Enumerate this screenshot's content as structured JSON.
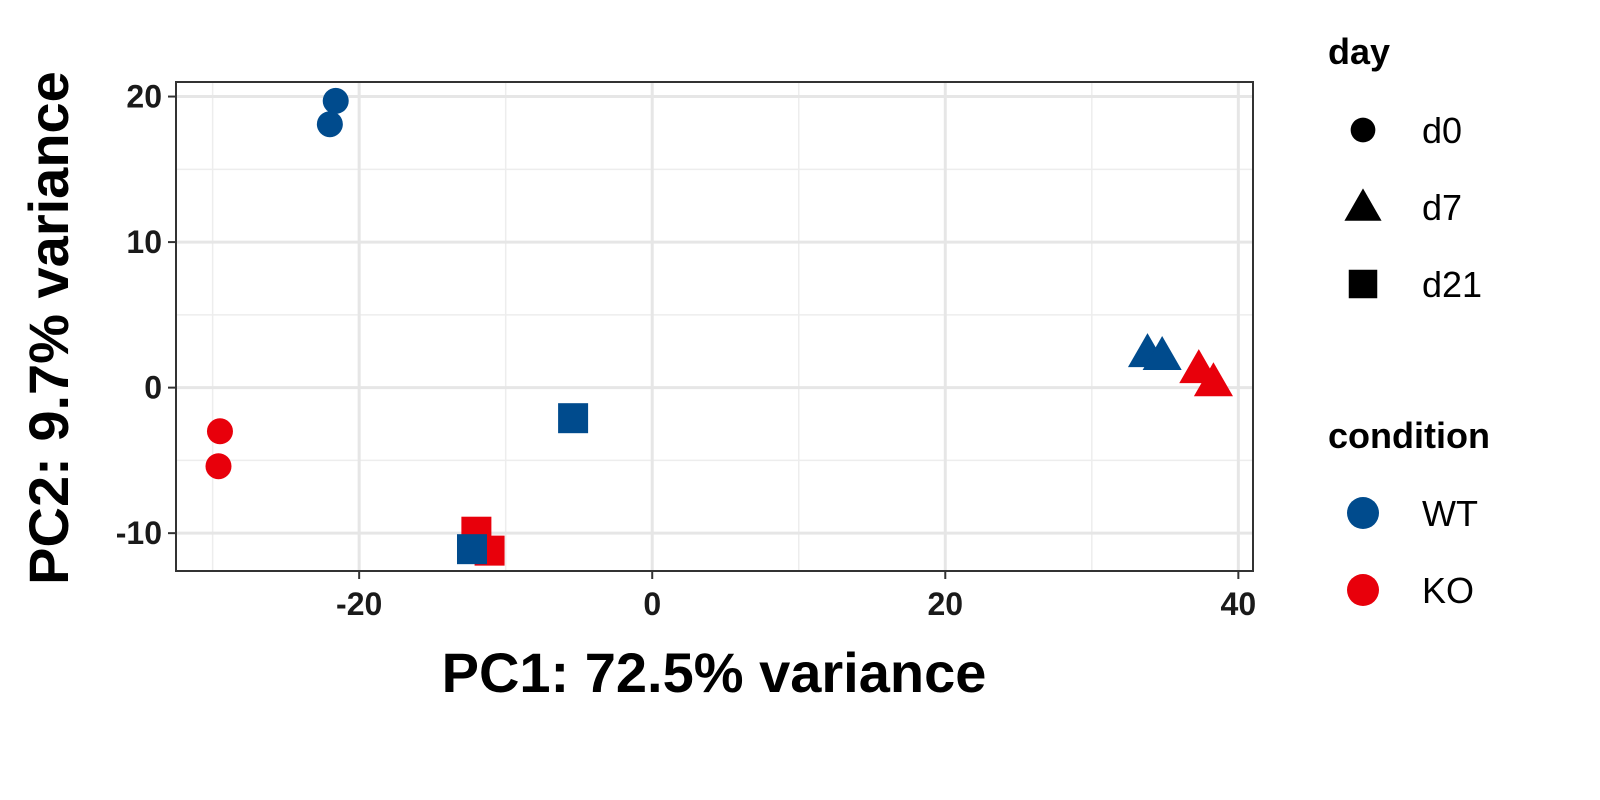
{
  "chart_data": {
    "type": "scatter",
    "xlabel": "PC1: 72.5% variance",
    "ylabel": "PC2: 9.7% variance",
    "xlim": [
      -32.5,
      41
    ],
    "ylim": [
      -12.6,
      21
    ],
    "xticks": [
      -20,
      0,
      20,
      40
    ],
    "yticks": [
      -10,
      0,
      10,
      20
    ],
    "xtick_labels": [
      "-20",
      "0",
      "20",
      "40"
    ],
    "ytick_labels": [
      "-10",
      "0",
      "10",
      "20"
    ],
    "grid": true,
    "legend_position": "right",
    "legends": {
      "day": {
        "title": "day",
        "items": [
          {
            "label": "d0",
            "shape": "circle"
          },
          {
            "label": "d7",
            "shape": "triangle"
          },
          {
            "label": "d21",
            "shape": "square"
          }
        ]
      },
      "condition": {
        "title": "condition",
        "items": [
          {
            "label": "WT",
            "color": "#004B8D"
          },
          {
            "label": "KO",
            "color": "#E8000B"
          }
        ]
      }
    },
    "colors": {
      "WT": "#004B8D",
      "KO": "#E8000B"
    },
    "points": [
      {
        "x": -21.6,
        "y": 19.7,
        "day": "d0",
        "condition": "WT"
      },
      {
        "x": -22.0,
        "y": 18.1,
        "day": "d0",
        "condition": "WT"
      },
      {
        "x": -29.5,
        "y": -3.0,
        "day": "d0",
        "condition": "KO"
      },
      {
        "x": -29.6,
        "y": -5.4,
        "day": "d0",
        "condition": "KO"
      },
      {
        "x": -12.0,
        "y": -9.9,
        "day": "d21",
        "condition": "KO"
      },
      {
        "x": -11.1,
        "y": -11.2,
        "day": "d21",
        "condition": "KO"
      },
      {
        "x": -12.3,
        "y": -11.1,
        "day": "d21",
        "condition": "WT"
      },
      {
        "x": -5.4,
        "y": -2.1,
        "day": "d21",
        "condition": "WT"
      },
      {
        "x": 33.8,
        "y": 2.4,
        "day": "d7",
        "condition": "WT"
      },
      {
        "x": 34.8,
        "y": 2.2,
        "day": "d7",
        "condition": "WT"
      },
      {
        "x": 37.3,
        "y": 1.3,
        "day": "d7",
        "condition": "KO"
      },
      {
        "x": 38.3,
        "y": 0.4,
        "day": "d7",
        "condition": "KO"
      }
    ]
  }
}
